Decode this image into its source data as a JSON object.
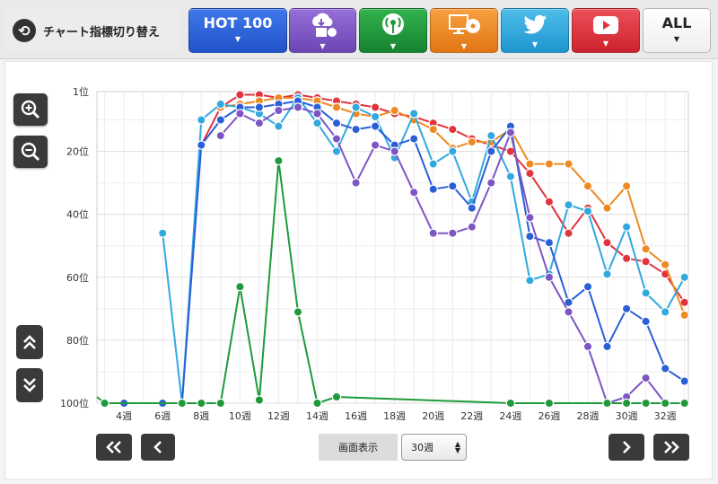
{
  "toolbar": {
    "switch_label": "チャート指標切り替え",
    "tabs": [
      {
        "id": "hot100",
        "label": "HOT 100",
        "color": "#2a5fd6",
        "icon": ""
      },
      {
        "id": "download",
        "label": "",
        "color": "#7d55c4",
        "icon": "cloud-download-icon"
      },
      {
        "id": "radio",
        "label": "",
        "color": "#1f9a3a",
        "icon": "radio-antenna-icon"
      },
      {
        "id": "physical",
        "label": "",
        "color": "#ee8a24",
        "icon": "disc-sales-icon"
      },
      {
        "id": "twitter",
        "label": "",
        "color": "#31a9df",
        "icon": "twitter-bird-icon"
      },
      {
        "id": "youtube",
        "label": "",
        "color": "#e0343e",
        "icon": "youtube-play-icon"
      },
      {
        "id": "all",
        "label": "ALL",
        "color": "#ffffff",
        "icon": ""
      }
    ]
  },
  "controls": {
    "display_label": "画面表示",
    "weeks_value": "30週"
  },
  "chart_data": {
    "type": "line",
    "y_axis": {
      "reversed": true,
      "range": [
        1,
        100
      ],
      "ticks": [
        1,
        20,
        40,
        60,
        80,
        100
      ],
      "tick_labels": [
        "1位",
        "20位",
        "40位",
        "60位",
        "80位",
        "100位"
      ]
    },
    "x_axis": {
      "range": [
        2.6,
        33.2
      ],
      "ticks": [
        4,
        6,
        8,
        10,
        12,
        14,
        16,
        18,
        20,
        22,
        24,
        26,
        28,
        30,
        32
      ],
      "tick_labels": [
        "4週",
        "6週",
        "8週",
        "10週",
        "12週",
        "14週",
        "16週",
        "18週",
        "20週",
        "22週",
        "24週",
        "26週",
        "28週",
        "30週",
        "32週"
      ]
    },
    "grid": true,
    "series": [
      {
        "color": "#e0343e",
        "points": [
          [
            8,
            18
          ],
          [
            9,
            6
          ],
          [
            10,
            2
          ],
          [
            11,
            2
          ],
          [
            12,
            3
          ],
          [
            13,
            2
          ],
          [
            14,
            3
          ],
          [
            15,
            4
          ],
          [
            16,
            5
          ],
          [
            17,
            6
          ],
          [
            18,
            8
          ],
          [
            19,
            9
          ],
          [
            20,
            11
          ],
          [
            21,
            13
          ],
          [
            22,
            16
          ],
          [
            23,
            18
          ],
          [
            24,
            20
          ],
          [
            25,
            27
          ],
          [
            26,
            36
          ],
          [
            27,
            46
          ],
          [
            28,
            38
          ],
          [
            29,
            49
          ],
          [
            30,
            54
          ],
          [
            31,
            55
          ],
          [
            32,
            59
          ],
          [
            33,
            68
          ]
        ]
      },
      {
        "color": "#ee8a24",
        "points": [
          [
            9,
            6
          ],
          [
            10,
            5
          ],
          [
            11,
            4
          ],
          [
            12,
            3
          ],
          [
            13,
            3
          ],
          [
            14,
            4
          ],
          [
            15,
            6
          ],
          [
            16,
            8
          ],
          [
            17,
            9
          ],
          [
            18,
            7
          ],
          [
            19,
            10
          ],
          [
            20,
            13
          ],
          [
            21,
            19
          ],
          [
            22,
            17
          ],
          [
            23,
            17
          ],
          [
            24,
            13
          ],
          [
            25,
            24
          ],
          [
            26,
            24
          ],
          [
            27,
            24
          ],
          [
            28,
            31
          ],
          [
            29,
            38
          ],
          [
            30,
            31
          ],
          [
            31,
            51
          ],
          [
            32,
            56
          ],
          [
            33,
            72
          ]
        ]
      },
      {
        "color": "#31a9df",
        "points": [
          [
            6,
            46
          ],
          [
            7,
            100
          ],
          [
            8,
            10
          ],
          [
            9,
            5
          ],
          [
            10,
            6
          ],
          [
            11,
            8
          ],
          [
            12,
            12
          ],
          [
            13,
            3
          ],
          [
            14,
            11
          ],
          [
            15,
            20
          ],
          [
            16,
            6
          ],
          [
            17,
            9
          ],
          [
            18,
            22
          ],
          [
            19,
            8
          ],
          [
            20,
            24
          ],
          [
            21,
            20
          ],
          [
            22,
            36
          ],
          [
            23,
            15
          ],
          [
            24,
            28
          ],
          [
            25,
            61
          ],
          [
            26,
            59
          ],
          [
            27,
            37
          ],
          [
            28,
            39
          ],
          [
            29,
            59
          ],
          [
            30,
            44
          ],
          [
            31,
            65
          ],
          [
            32,
            71
          ],
          [
            33,
            60
          ]
        ]
      },
      {
        "color": "#2a5fd6",
        "points": [
          [
            3,
            100
          ],
          [
            4,
            100
          ],
          [
            6,
            100
          ],
          [
            7,
            100
          ],
          [
            8,
            18
          ],
          [
            9,
            10
          ],
          [
            10,
            6
          ],
          [
            11,
            6
          ],
          [
            12,
            5
          ],
          [
            13,
            4
          ],
          [
            14,
            6
          ],
          [
            15,
            11
          ],
          [
            16,
            13
          ],
          [
            17,
            12
          ],
          [
            18,
            18
          ],
          [
            19,
            16
          ],
          [
            20,
            32
          ],
          [
            21,
            31
          ],
          [
            22,
            38
          ],
          [
            23,
            20
          ],
          [
            24,
            12
          ],
          [
            25,
            47
          ],
          [
            26,
            49
          ],
          [
            27,
            68
          ],
          [
            28,
            63
          ],
          [
            29,
            82
          ],
          [
            30,
            70
          ],
          [
            31,
            74
          ],
          [
            32,
            89
          ],
          [
            33,
            93
          ]
        ]
      },
      {
        "color": "#7d55c4",
        "points": [
          [
            9,
            15
          ],
          [
            10,
            8
          ],
          [
            11,
            11
          ],
          [
            12,
            7
          ],
          [
            13,
            6
          ],
          [
            14,
            8
          ],
          [
            15,
            16
          ],
          [
            16,
            30
          ],
          [
            17,
            18
          ],
          [
            18,
            20
          ],
          [
            19,
            33
          ],
          [
            20,
            46
          ],
          [
            21,
            46
          ],
          [
            22,
            44
          ],
          [
            23,
            30
          ],
          [
            24,
            14
          ],
          [
            25,
            41
          ],
          [
            26,
            60
          ],
          [
            27,
            71
          ],
          [
            28,
            82
          ],
          [
            29,
            100
          ],
          [
            30,
            98
          ],
          [
            31,
            92
          ],
          [
            32,
            100
          ]
        ]
      },
      {
        "color": "#1f9a3a",
        "points": [
          [
            2.6,
            98
          ],
          [
            3,
            100
          ],
          [
            7,
            100
          ],
          [
            8,
            100
          ],
          [
            9,
            100
          ],
          [
            10,
            63
          ],
          [
            11,
            99
          ],
          [
            12,
            23
          ],
          [
            13,
            71
          ],
          [
            14,
            100
          ],
          [
            15,
            98
          ],
          [
            24,
            100
          ],
          [
            26,
            100
          ],
          [
            29,
            100
          ],
          [
            30,
            100
          ],
          [
            31,
            100
          ],
          [
            32,
            100
          ],
          [
            33,
            100
          ]
        ]
      }
    ]
  }
}
